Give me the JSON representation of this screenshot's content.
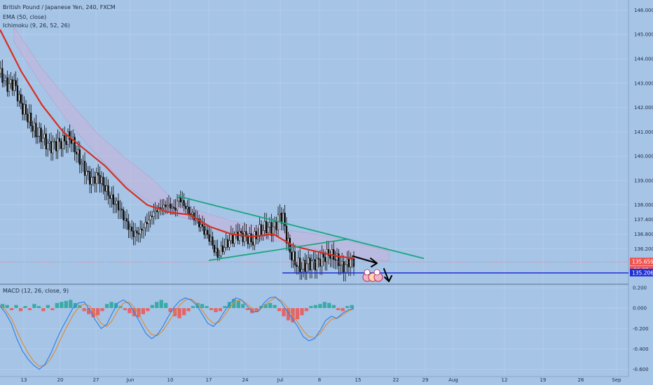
{
  "legend": {
    "symbol": "British Pound / Japanese Yen, 240, FXCM",
    "ema": "EMA (50, close)",
    "ichimoku": "Ichimoku (9, 26, 52, 26)",
    "macd": "MACD (12, 26, close, 9)"
  },
  "colors": {
    "background": "#a6c4e6",
    "ema": "#d92d20",
    "trendline": "#1aa67e",
    "support": "#1f2fd6",
    "cloud": "#c6b5d8",
    "macd_line": "#2a7fe8",
    "signal_line": "#e08a2e",
    "hist_positive": "#26a69a",
    "hist_negative": "#ef5350",
    "price_tag": "#ef5350",
    "support_tag": "#1f2fd6"
  },
  "icons": [
    "arrow-down-right-icon",
    "arrow-down-icon",
    "emoji-badges-icon"
  ],
  "chart_data": [
    {
      "type": "candlestick",
      "title": "British Pound / Japanese Yen, 240, FXCM",
      "x_ticks": [
        "13",
        "20",
        "27",
        "Jun",
        "10",
        "17",
        "24",
        "Jul",
        "8",
        "15",
        "22",
        "29",
        "Aug",
        "12",
        "19",
        "26",
        "Sep"
      ],
      "y_ticks": [
        "146.000",
        "145.000",
        "144.000",
        "143.000",
        "142.000",
        "141.000",
        "140.000",
        "139.000",
        "138.000",
        "137.400",
        "136.800",
        "136.200",
        "135.659",
        "135.206"
      ],
      "ylim": [
        134.8,
        146.3
      ],
      "last_price": "135.659",
      "countdown": "06:02",
      "support_level": "135.206",
      "price_path": [
        [
          0,
          143.4
        ],
        [
          10,
          142.9
        ],
        [
          20,
          143.0
        ],
        [
          30,
          142.1
        ],
        [
          40,
          141.6
        ],
        [
          50,
          141.0
        ],
        [
          60,
          140.8
        ],
        [
          70,
          140.4
        ],
        [
          80,
          140.5
        ],
        [
          90,
          140.6
        ],
        [
          100,
          140.8
        ],
        [
          110,
          140.1
        ],
        [
          120,
          139.5
        ],
        [
          130,
          139.0
        ],
        [
          140,
          139.2
        ],
        [
          150,
          138.7
        ],
        [
          160,
          138.2
        ],
        [
          170,
          137.9
        ],
        [
          180,
          137.3
        ],
        [
          190,
          136.8
        ],
        [
          200,
          136.9
        ],
        [
          210,
          137.3
        ],
        [
          220,
          137.7
        ],
        [
          230,
          137.9
        ],
        [
          240,
          138.0
        ],
        [
          250,
          137.8
        ],
        [
          255,
          138.3
        ],
        [
          260,
          138.1
        ],
        [
          270,
          137.7
        ],
        [
          280,
          137.4
        ],
        [
          290,
          137.0
        ],
        [
          300,
          136.6
        ],
        [
          310,
          135.9
        ],
        [
          320,
          136.3
        ],
        [
          330,
          136.6
        ],
        [
          340,
          136.8
        ],
        [
          350,
          136.7
        ],
        [
          360,
          136.5
        ],
        [
          370,
          136.9
        ],
        [
          380,
          137.1
        ],
        [
          390,
          137.0
        ],
        [
          400,
          137.6
        ],
        [
          405,
          137.4
        ],
        [
          410,
          136.5
        ],
        [
          415,
          136.0
        ],
        [
          420,
          135.7
        ],
        [
          430,
          135.4
        ],
        [
          440,
          135.6
        ],
        [
          450,
          135.6
        ],
        [
          460,
          135.8
        ],
        [
          470,
          136.0
        ],
        [
          480,
          135.8
        ],
        [
          490,
          135.4
        ],
        [
          495,
          135.6
        ],
        [
          500,
          135.7
        ],
        [
          505,
          135.66
        ]
      ],
      "ema_path": [
        [
          0,
          145.2
        ],
        [
          30,
          143.5
        ],
        [
          60,
          142.1
        ],
        [
          90,
          141.0
        ],
        [
          120,
          140.3
        ],
        [
          150,
          139.6
        ],
        [
          180,
          138.7
        ],
        [
          210,
          138.0
        ],
        [
          240,
          137.7
        ],
        [
          270,
          137.6
        ],
        [
          300,
          137.1
        ],
        [
          330,
          136.8
        ],
        [
          360,
          136.7
        ],
        [
          390,
          136.8
        ],
        [
          420,
          136.3
        ],
        [
          450,
          136.1
        ],
        [
          480,
          135.9
        ],
        [
          505,
          135.8
        ]
      ],
      "cloud_upper": [
        [
          20,
          145.3
        ],
        [
          60,
          143.6
        ],
        [
          100,
          142.2
        ],
        [
          140,
          140.9
        ],
        [
          180,
          139.9
        ],
        [
          220,
          139.0
        ],
        [
          250,
          138.1
        ],
        [
          300,
          137.6
        ],
        [
          350,
          137.2
        ],
        [
          400,
          137.0
        ],
        [
          450,
          136.8
        ],
        [
          500,
          136.5
        ],
        [
          555,
          136.1
        ]
      ],
      "cloud_lower": [
        [
          20,
          144.7
        ],
        [
          60,
          142.9
        ],
        [
          100,
          141.3
        ],
        [
          140,
          140.0
        ],
        [
          180,
          138.8
        ],
        [
          220,
          138.0
        ],
        [
          250,
          137.6
        ],
        [
          300,
          137.1
        ],
        [
          350,
          136.7
        ],
        [
          400,
          136.5
        ],
        [
          450,
          136.2
        ],
        [
          500,
          135.8
        ],
        [
          555,
          135.7
        ]
      ],
      "trendline_upper": [
        [
          255,
          138.35
        ],
        [
          605,
          135.8
        ]
      ],
      "trendline_lower": [
        [
          298,
          135.72
        ],
        [
          497,
          136.6
        ]
      ]
    },
    {
      "type": "bar",
      "title": "MACD (12, 26, close, 9)",
      "y_ticks": [
        "0.200",
        "0.000",
        "-0.200",
        "-0.400",
        "-0.600"
      ],
      "ylim": [
        -0.65,
        0.22
      ],
      "histogram": [
        0.04,
        0.03,
        -0.02,
        0.03,
        -0.03,
        0.02,
        -0.02,
        0.04,
        0.02,
        -0.03,
        0.03,
        -0.02,
        0.05,
        0.06,
        0.07,
        0.08,
        0.05,
        0.03,
        -0.03,
        -0.06,
        -0.09,
        -0.07,
        -0.03,
        0.04,
        0.06,
        0.05,
        0.02,
        -0.02,
        -0.05,
        -0.08,
        -0.09,
        -0.06,
        -0.03,
        0.03,
        0.06,
        0.08,
        0.05,
        -0.04,
        -0.08,
        -0.1,
        -0.07,
        -0.03,
        0.02,
        0.05,
        0.04,
        0.02,
        -0.02,
        -0.04,
        -0.03,
        0.02,
        0.06,
        0.09,
        0.07,
        0.04,
        -0.02,
        -0.05,
        -0.04,
        0.02,
        0.04,
        0.05,
        0.03,
        -0.03,
        -0.08,
        -0.12,
        -0.14,
        -0.11,
        -0.07,
        -0.03,
        0.02,
        0.03,
        0.04,
        0.06,
        0.05,
        0.03,
        -0.02,
        -0.03,
        0.02,
        0.03
      ],
      "macd_line": [
        0.02,
        -0.05,
        -0.15,
        -0.3,
        -0.42,
        -0.5,
        -0.56,
        -0.6,
        -0.55,
        -0.45,
        -0.32,
        -0.2,
        -0.1,
        0.0,
        0.05,
        0.06,
        -0.02,
        -0.12,
        -0.2,
        -0.16,
        -0.05,
        0.05,
        0.08,
        0.04,
        -0.05,
        -0.15,
        -0.25,
        -0.3,
        -0.26,
        -0.18,
        -0.08,
        0.01,
        0.07,
        0.1,
        0.08,
        0.03,
        -0.06,
        -0.15,
        -0.18,
        -0.12,
        -0.03,
        0.05,
        0.1,
        0.08,
        0.02,
        -0.04,
        -0.03,
        0.05,
        0.1,
        0.11,
        0.06,
        -0.02,
        -0.1,
        -0.18,
        -0.28,
        -0.32,
        -0.3,
        -0.22,
        -0.12,
        -0.08,
        -0.1,
        -0.05,
        -0.02,
        0.0
      ],
      "signal_line": [
        0.03,
        -0.02,
        -0.1,
        -0.22,
        -0.34,
        -0.44,
        -0.52,
        -0.57,
        -0.56,
        -0.5,
        -0.4,
        -0.28,
        -0.17,
        -0.07,
        0.01,
        0.04,
        0.02,
        -0.06,
        -0.15,
        -0.18,
        -0.12,
        -0.02,
        0.05,
        0.06,
        0.0,
        -0.09,
        -0.19,
        -0.26,
        -0.27,
        -0.22,
        -0.14,
        -0.05,
        0.03,
        0.08,
        0.09,
        0.05,
        -0.02,
        -0.1,
        -0.15,
        -0.14,
        -0.07,
        0.01,
        0.07,
        0.08,
        0.04,
        -0.01,
        -0.03,
        0.02,
        0.07,
        0.1,
        0.08,
        0.02,
        -0.06,
        -0.14,
        -0.22,
        -0.28,
        -0.29,
        -0.25,
        -0.17,
        -0.11,
        -0.1,
        -0.07,
        -0.03,
        -0.01
      ]
    }
  ]
}
